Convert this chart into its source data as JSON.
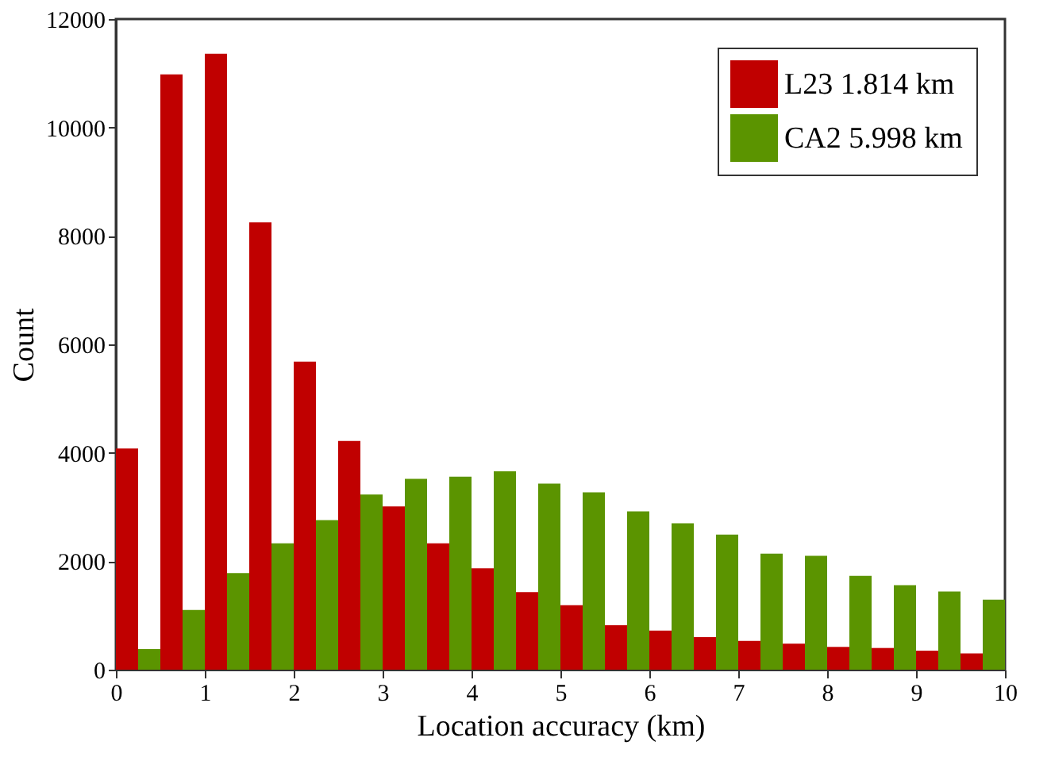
{
  "chart_data": {
    "type": "histogram",
    "xlabel": "Location accuracy (km)",
    "ylabel": "Count",
    "bins": [
      0,
      0.5,
      1,
      1.5,
      2,
      2.5,
      3,
      3.5,
      4,
      4.5,
      5,
      5.5,
      6,
      6.5,
      7,
      7.5,
      8,
      8.5,
      9,
      9.5,
      10
    ],
    "series": [
      {
        "name": "L23 1.814 km",
        "color": "#c00000",
        "values": [
          4080,
          10980,
          11360,
          8250,
          5680,
          4220,
          3010,
          2330,
          1870,
          1430,
          1190,
          820,
          720,
          600,
          530,
          480,
          420,
          400,
          350,
          300
        ]
      },
      {
        "name": "CA2 5.998 km",
        "color": "#5b9400",
        "values": [
          380,
          1100,
          1780,
          2330,
          2760,
          3230,
          3520,
          3560,
          3660,
          3430,
          3270,
          2920,
          2700,
          2490,
          2140,
          2100,
          1730,
          1560,
          1440,
          1290
        ]
      }
    ],
    "xlim": [
      0,
      10
    ],
    "xticks": [
      0,
      1,
      2,
      3,
      4,
      5,
      6,
      7,
      8,
      9,
      10
    ],
    "ylim": [
      0,
      12000
    ],
    "yticks": [
      0,
      2000,
      4000,
      6000,
      8000,
      10000,
      12000
    ],
    "grid": false,
    "legend": "top right"
  }
}
